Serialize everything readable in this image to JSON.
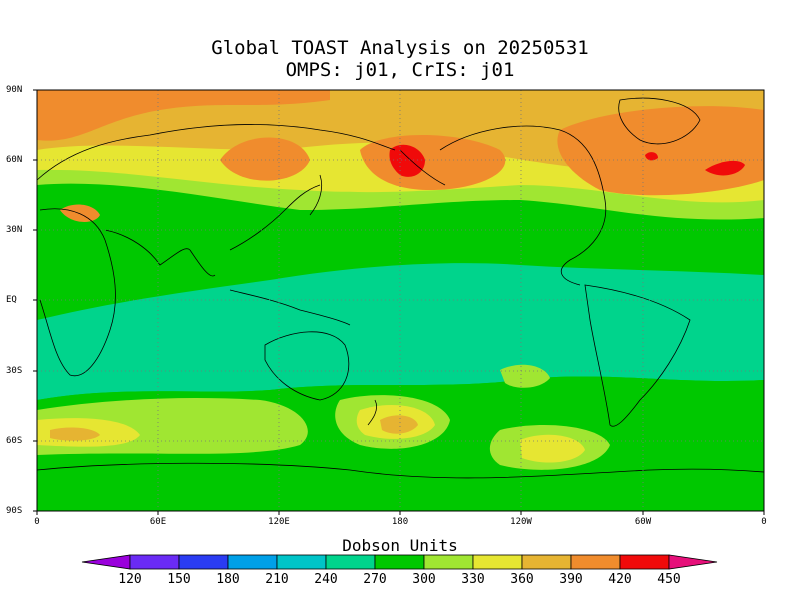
{
  "title_line1": "Global TOAST Analysis on 20250531",
  "title_line2": "OMPS: j01, CrIS: j01",
  "lat_labels": [
    "90N",
    "60N",
    "30N",
    "EQ",
    "30S",
    "60S",
    "90S"
  ],
  "lon_labels": [
    "0",
    "60E",
    "120E",
    "180",
    "120W",
    "60W",
    "0"
  ],
  "colorbar_title": "Dobson Units",
  "colorbar_ticks": [
    "120",
    "150",
    "180",
    "210",
    "240",
    "270",
    "300",
    "330",
    "360",
    "390",
    "420",
    "450"
  ],
  "colorbar_colors": [
    "#9a00dc",
    "#6a2bf5",
    "#2a3cf2",
    "#00a0e8",
    "#00c4c8",
    "#00d48c",
    "#00c800",
    "#a0e632",
    "#e6e632",
    "#e6b432",
    "#f08c2d",
    "#f00a0a",
    "#e6107a"
  ],
  "map_colors": {
    "trop_330": "#00d48c",
    "mid_300": "#00c800",
    "band_330": "#a0e632",
    "band_360": "#e6e632",
    "band_390": "#e6b432",
    "band_420": "#f08c2d",
    "band_450": "#f00a0a"
  }
}
